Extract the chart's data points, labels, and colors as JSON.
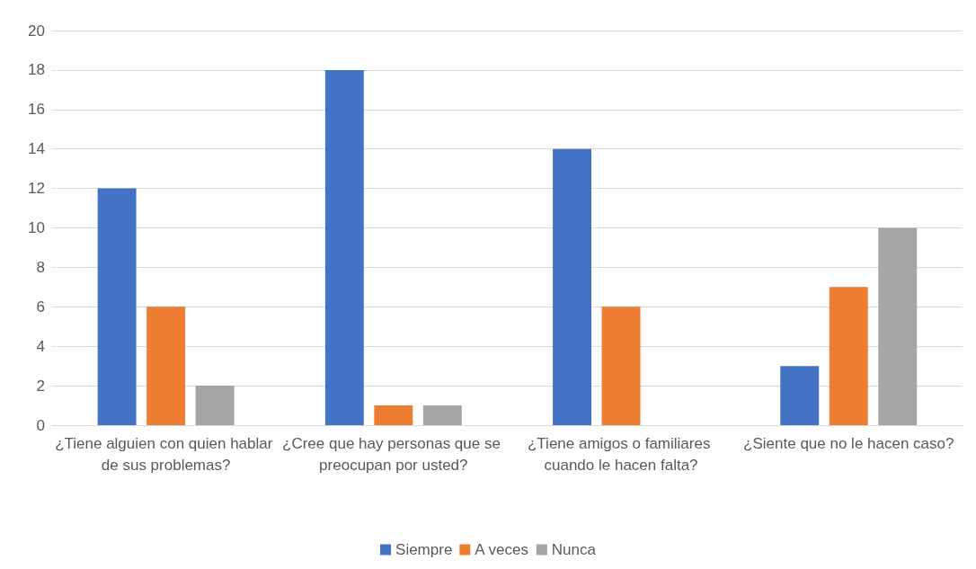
{
  "chart_data": {
    "type": "bar",
    "categories": [
      "¿Tiene alguien con quien hablar de sus problemas?",
      "¿Cree que hay personas que se preocupan por usted?",
      "¿Tiene amigos o familiares cuando le hacen falta?",
      "¿Siente que no le hacen caso?"
    ],
    "series": [
      {
        "name": "Siempre",
        "color": "#4472c4",
        "values": [
          12,
          18,
          14,
          3
        ]
      },
      {
        "name": "A veces",
        "color": "#ed7d31",
        "values": [
          6,
          1,
          6,
          7
        ]
      },
      {
        "name": "Nunca",
        "color": "#a5a5a5",
        "values": [
          2,
          1,
          0,
          10
        ]
      }
    ],
    "ylim": [
      0,
      20
    ],
    "yticks": [
      0,
      2,
      4,
      6,
      8,
      10,
      12,
      14,
      16,
      18,
      20
    ],
    "grid": "y",
    "legend": "bottom"
  }
}
